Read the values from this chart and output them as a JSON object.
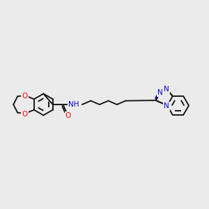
{
  "bg": "#ebebeb",
  "bc": "#1a1a1a",
  "oc": "#ff0000",
  "nc": "#0000cc",
  "lw": 1.4,
  "lw_thin": 1.0,
  "fs": 7.5,
  "fig_w": 3.0,
  "fig_h": 3.0,
  "dpi": 100,
  "xlim": [
    0,
    10
  ],
  "ylim": [
    2.5,
    7.5
  ]
}
